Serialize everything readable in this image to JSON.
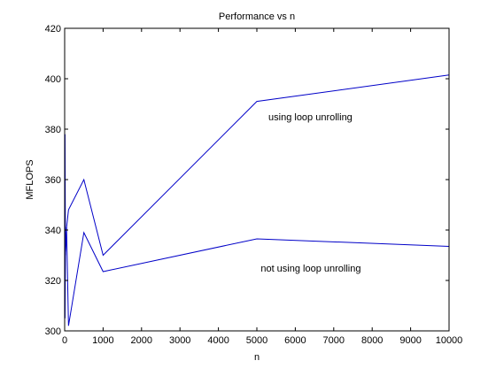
{
  "chart_data": {
    "type": "line",
    "title": "Performance vs n",
    "xlabel": "n",
    "ylabel": "MFLOPS",
    "xlim": [
      0,
      10000
    ],
    "ylim": [
      300,
      420
    ],
    "x_ticks": [
      0,
      1000,
      2000,
      3000,
      4000,
      5000,
      6000,
      7000,
      8000,
      9000,
      10000
    ],
    "y_ticks": [
      300,
      320,
      340,
      360,
      380,
      400,
      420
    ],
    "grid": false,
    "legend": "none",
    "line_color": "#0000c8",
    "series": [
      {
        "x": [
          10,
          20,
          50,
          100,
          500,
          1000,
          5000,
          10000
        ],
        "y": [
          378,
          330,
          341,
          348,
          360,
          330,
          391,
          401.5
        ]
      },
      {
        "x": [
          10,
          20,
          50,
          100,
          500,
          1000,
          5000,
          10000
        ],
        "y": [
          305,
          330,
          341,
          302,
          339,
          323.5,
          336.5,
          333.5
        ]
      }
    ],
    "annotations": [
      {
        "text": "using loop unrolling",
        "x": 5300,
        "y": 385
      },
      {
        "text": "not using loop unrolling",
        "x": 5100,
        "y": 325
      }
    ]
  }
}
